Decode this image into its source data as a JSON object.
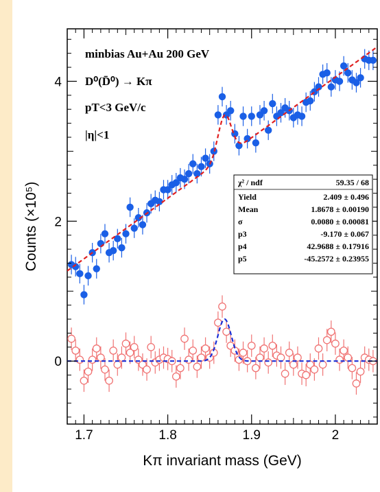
{
  "chart_data": {
    "type": "scatter",
    "xlabel": "Kπ invariant mass (GeV)",
    "ylabel": "Counts (×10⁵)",
    "xlim": [
      1.68,
      2.05
    ],
    "ylim": [
      -0.9,
      4.75
    ],
    "x_ticks": [
      {
        "value": 1.7,
        "label": "1.7"
      },
      {
        "value": 1.8,
        "label": "1.8"
      },
      {
        "value": 1.9,
        "label": "1.9"
      },
      {
        "value": 2.0,
        "label": "2"
      }
    ],
    "y_ticks": [
      {
        "value": 0,
        "label": "0"
      },
      {
        "value": 2,
        "label": "2"
      },
      {
        "value": 4,
        "label": "4"
      }
    ],
    "annotations": [
      "minbias Au+Au 200 GeV",
      "D⁰(D̄⁰) → Kπ",
      "pT<3 GeV/c",
      "|η|<1"
    ],
    "stats_box": [
      {
        "name": "χ² / ndf",
        "value": "59.35 / 68"
      },
      {
        "name": "Yield",
        "value": "2.409 ±  0.496"
      },
      {
        "name": "Mean",
        "value": "1.8678 ± 0.00190"
      },
      {
        "name": "σ",
        "value": "0.0080 ± 0.00081"
      },
      {
        "name": "p3",
        "value": "-9.170 ±  0.067"
      },
      {
        "name": "p4",
        "value": "42.9688 ± 0.17916"
      },
      {
        "name": "p5",
        "value": "-45.2572 ± 0.23955"
      }
    ],
    "series": [
      {
        "style": "filled-circle",
        "color": "#1a5fe6",
        "error": 0.14,
        "x": [
          1.685,
          1.69,
          1.695,
          1.7,
          1.705,
          1.71,
          1.715,
          1.72,
          1.725,
          1.73,
          1.735,
          1.74,
          1.745,
          1.75,
          1.755,
          1.76,
          1.765,
          1.77,
          1.775,
          1.78,
          1.785,
          1.79,
          1.795,
          1.8,
          1.805,
          1.81,
          1.815,
          1.82,
          1.825,
          1.83,
          1.835,
          1.84,
          1.845,
          1.85,
          1.855,
          1.86,
          1.865,
          1.87,
          1.875,
          1.88,
          1.885,
          1.89,
          1.895,
          1.9,
          1.905,
          1.91,
          1.915,
          1.92,
          1.925,
          1.93,
          1.935,
          1.94,
          1.945,
          1.95,
          1.955,
          1.96,
          1.965,
          1.97,
          1.975,
          1.98,
          1.985,
          1.99,
          1.995,
          2.0,
          2.005,
          2.01,
          2.015,
          2.02,
          2.025,
          2.03,
          2.035,
          2.04,
          2.045
        ],
        "y": [
          1.38,
          1.35,
          1.25,
          0.95,
          1.22,
          1.55,
          1.32,
          1.68,
          1.82,
          1.55,
          1.58,
          1.75,
          1.62,
          1.82,
          2.2,
          1.9,
          2.05,
          1.95,
          2.12,
          2.25,
          2.3,
          2.28,
          2.45,
          2.45,
          2.52,
          2.55,
          2.62,
          2.6,
          2.68,
          2.82,
          2.68,
          2.78,
          2.9,
          2.82,
          3.0,
          3.52,
          3.78,
          3.52,
          3.58,
          3.25,
          3.08,
          3.5,
          3.18,
          3.5,
          3.12,
          3.52,
          3.58,
          3.3,
          3.68,
          3.5,
          3.55,
          3.62,
          3.58,
          3.48,
          3.52,
          3.5,
          3.7,
          3.72,
          3.85,
          3.92,
          4.1,
          4.12,
          3.92,
          4.02,
          4.0,
          4.22,
          4.12,
          4.02,
          3.98,
          4.05,
          4.32,
          4.3,
          4.3
        ]
      },
      {
        "style": "open-circle",
        "color": "#f07373",
        "error": 0.16,
        "x": [
          1.685,
          1.69,
          1.695,
          1.7,
          1.705,
          1.71,
          1.715,
          1.72,
          1.725,
          1.73,
          1.735,
          1.74,
          1.745,
          1.75,
          1.755,
          1.76,
          1.765,
          1.77,
          1.775,
          1.78,
          1.785,
          1.79,
          1.795,
          1.8,
          1.805,
          1.81,
          1.815,
          1.82,
          1.825,
          1.83,
          1.835,
          1.84,
          1.845,
          1.85,
          1.855,
          1.86,
          1.865,
          1.87,
          1.875,
          1.88,
          1.885,
          1.89,
          1.895,
          1.9,
          1.905,
          1.91,
          1.915,
          1.92,
          1.925,
          1.93,
          1.935,
          1.94,
          1.945,
          1.95,
          1.955,
          1.96,
          1.965,
          1.97,
          1.975,
          1.98,
          1.985,
          1.99,
          1.995,
          2.0,
          2.005,
          2.01,
          2.015,
          2.02,
          2.025,
          2.03,
          2.035,
          2.04,
          2.045
        ],
        "y": [
          0.32,
          0.15,
          0.02,
          -0.28,
          -0.15,
          0.02,
          0.18,
          0.05,
          -0.12,
          -0.28,
          0.15,
          -0.05,
          0.05,
          0.25,
          0.12,
          0.2,
          0.02,
          -0.05,
          -0.12,
          0.2,
          -0.02,
          0.02,
          0.05,
          0.03,
          0.0,
          -0.22,
          -0.1,
          0.32,
          0.02,
          0.15,
          -0.08,
          0.05,
          0.18,
          0.05,
          0.12,
          0.55,
          0.78,
          0.42,
          0.22,
          0.15,
          0.02,
          0.12,
          0.0,
          0.22,
          -0.1,
          0.05,
          0.18,
          -0.02,
          0.22,
          0.08,
          0.05,
          -0.18,
          0.12,
          -0.05,
          0.05,
          -0.18,
          -0.2,
          -0.05,
          -0.12,
          0.18,
          -0.05,
          0.3,
          0.42,
          0.25,
          0.02,
          0.15,
          0.05,
          -0.1,
          -0.32,
          -0.15,
          0.05,
          0.02,
          0.0
        ]
      }
    ]
  }
}
